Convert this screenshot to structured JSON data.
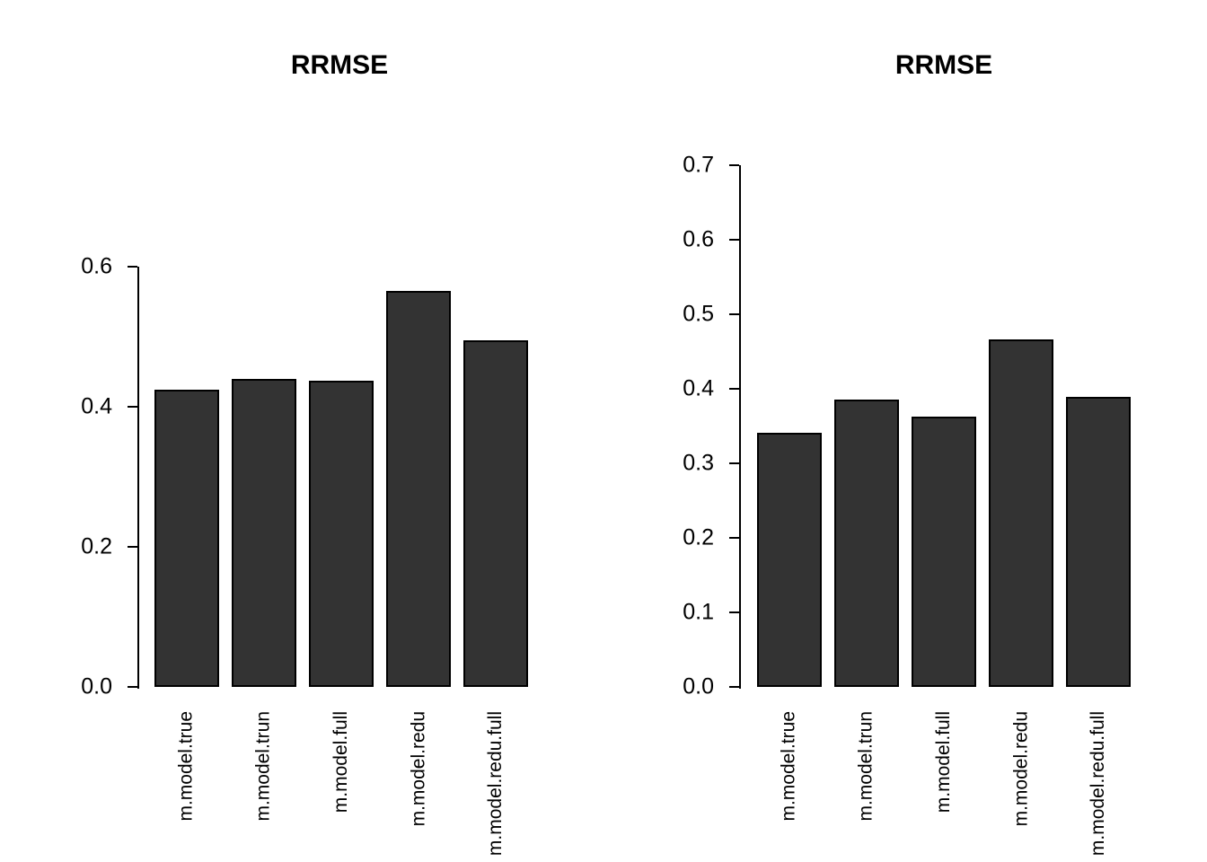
{
  "figure": {
    "background": "#ffffff"
  },
  "chart_data": [
    {
      "type": "bar",
      "title": "RRMSE",
      "categories": [
        "m.model.true",
        "m.model.trun",
        "m.model.full",
        "m.model.redu",
        "m.model.redu.full"
      ],
      "values": [
        0.425,
        0.44,
        0.437,
        0.565,
        0.495
      ],
      "ylim": [
        0,
        0.6
      ],
      "yticks": [
        0,
        0.2,
        0.4,
        0.6
      ],
      "ytick_labels": [
        "0.0",
        "0.2",
        "0.4",
        "0.6"
      ],
      "xlabel": "",
      "ylabel": "",
      "grid": false,
      "legend_position": "none",
      "bar_color": "#333333",
      "bar_border_color": "#000000",
      "axis_color": "#000000"
    },
    {
      "type": "bar",
      "title": "RRMSE",
      "categories": [
        "m.model.true",
        "m.model.trun",
        "m.model.full",
        "m.model.redu",
        "m.model.redu.full"
      ],
      "values": [
        0.341,
        0.386,
        0.363,
        0.466,
        0.389
      ],
      "ylim": [
        0,
        0.7
      ],
      "yticks": [
        0,
        0.1,
        0.2,
        0.3,
        0.4,
        0.5,
        0.6,
        0.7
      ],
      "ytick_labels": [
        "0.0",
        "0.1",
        "0.2",
        "0.3",
        "0.4",
        "0.5",
        "0.6",
        "0.7"
      ],
      "xlabel": "",
      "ylabel": "",
      "grid": false,
      "legend_position": "none",
      "bar_color": "#333333",
      "bar_border_color": "#000000",
      "axis_color": "#000000"
    }
  ]
}
